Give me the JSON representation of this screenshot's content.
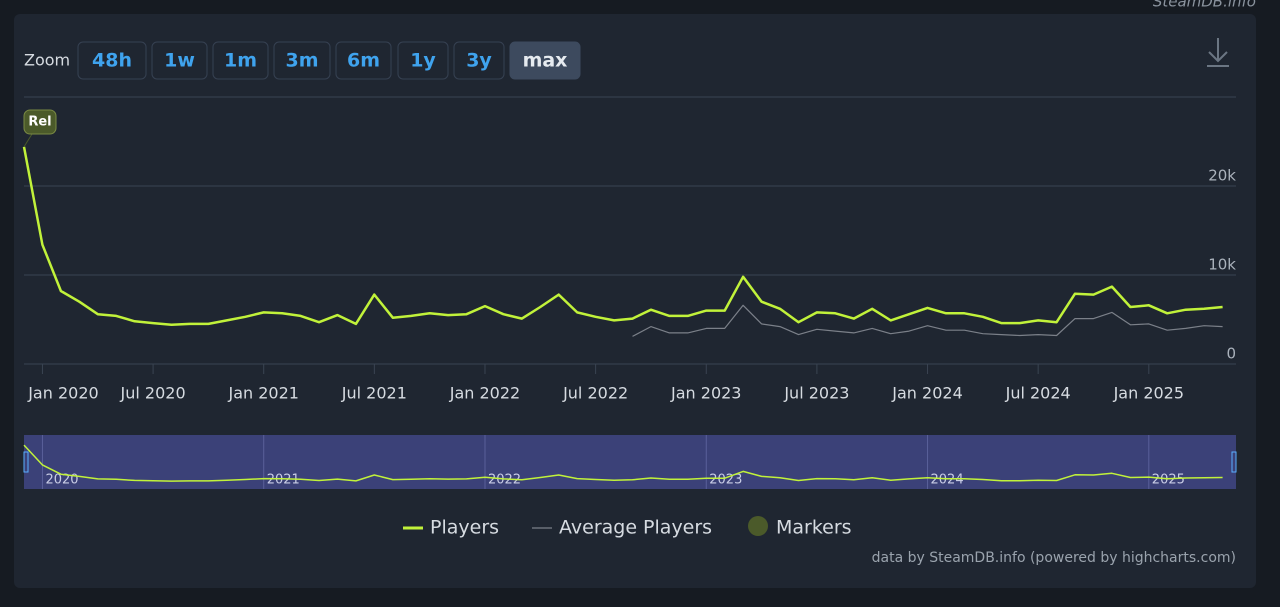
{
  "site": "SteamDB.info",
  "toolbar": {
    "label": "Zoom",
    "buttons": [
      "48h",
      "1w",
      "1m",
      "3m",
      "6m",
      "1y",
      "3y",
      "max"
    ],
    "active": "max"
  },
  "credits": "data by SteamDB.info (powered by highcharts.com)",
  "chart_data": {
    "type": "line",
    "x": [
      "2019-12",
      "2020-01",
      "2020-02",
      "2020-03",
      "2020-04",
      "2020-05",
      "2020-06",
      "2020-07",
      "2020-08",
      "2020-09",
      "2020-10",
      "2020-11",
      "2020-12",
      "2021-01",
      "2021-02",
      "2021-03",
      "2021-04",
      "2021-05",
      "2021-06",
      "2021-07",
      "2021-08",
      "2021-09",
      "2021-10",
      "2021-11",
      "2021-12",
      "2022-01",
      "2022-02",
      "2022-03",
      "2022-04",
      "2022-05",
      "2022-06",
      "2022-07",
      "2022-08",
      "2022-09",
      "2022-10",
      "2022-11",
      "2022-12",
      "2023-01",
      "2023-02",
      "2023-03",
      "2023-04",
      "2023-05",
      "2023-06",
      "2023-07",
      "2023-08",
      "2023-09",
      "2023-10",
      "2023-11",
      "2023-12",
      "2024-01",
      "2024-02",
      "2024-03",
      "2024-04",
      "2024-05",
      "2024-06",
      "2024-07",
      "2024-08",
      "2024-09",
      "2024-10",
      "2024-11",
      "2024-12",
      "2025-01",
      "2025-02",
      "2025-03",
      "2025-04",
      "2025-05"
    ],
    "series": [
      {
        "name": "Players",
        "color": "#c1f23a",
        "values": [
          24400,
          13400,
          8200,
          7000,
          5600,
          5400,
          4800,
          4600,
          4400,
          4500,
          4500,
          4900,
          5300,
          5800,
          5700,
          5400,
          4700,
          5500,
          4500,
          7800,
          5200,
          5400,
          5700,
          5500,
          5600,
          6500,
          5600,
          5100,
          6400,
          7800,
          5800,
          5300,
          4900,
          5100,
          6100,
          5400,
          5400,
          6000,
          6000,
          9800,
          7000,
          6200,
          4700,
          5800,
          5700,
          5100,
          6200,
          4900,
          5600,
          6300,
          5700,
          5700,
          5300,
          4600,
          4600,
          4900,
          4700,
          7900,
          7800,
          8700,
          6400,
          6600,
          5700,
          6100,
          6200,
          6400
        ]
      },
      {
        "name": "Average Players",
        "color": "#7b8089",
        "values": [
          null,
          null,
          null,
          null,
          null,
          null,
          null,
          null,
          null,
          null,
          null,
          null,
          null,
          null,
          null,
          null,
          null,
          null,
          null,
          null,
          null,
          null,
          null,
          null,
          null,
          null,
          null,
          null,
          null,
          null,
          null,
          null,
          null,
          3100,
          4200,
          3500,
          3500,
          4000,
          4000,
          6600,
          4500,
          4200,
          3300,
          3900,
          3700,
          3500,
          4000,
          3400,
          3700,
          4300,
          3800,
          3800,
          3400,
          3300,
          3200,
          3300,
          3200,
          5100,
          5100,
          5800,
          4400,
          4500,
          3800,
          4000,
          4300,
          4200
        ]
      }
    ],
    "markers": {
      "name": "Markers",
      "color": "#4b5a2a",
      "items": [
        {
          "x": "2019-12",
          "label": "Rel"
        }
      ]
    },
    "xlim": [
      "2019-12",
      "2025-06"
    ],
    "xticks": [
      {
        "value": "2020-01",
        "label": "Jan 2020"
      },
      {
        "value": "2020-07",
        "label": "Jul 2020"
      },
      {
        "value": "2021-01",
        "label": "Jan 2021"
      },
      {
        "value": "2021-07",
        "label": "Jul 2021"
      },
      {
        "value": "2022-01",
        "label": "Jan 2022"
      },
      {
        "value": "2022-07",
        "label": "Jul 2022"
      },
      {
        "value": "2023-01",
        "label": "Jan 2023"
      },
      {
        "value": "2023-07",
        "label": "Jul 2023"
      },
      {
        "value": "2024-01",
        "label": "Jan 2024"
      },
      {
        "value": "2024-07",
        "label": "Jul 2024"
      },
      {
        "value": "2025-01",
        "label": "Jan 2025"
      }
    ],
    "ylim": [
      0,
      30000
    ],
    "yticks": [
      0,
      {
        "value": 10000,
        "label": "10k"
      },
      {
        "value": 20000,
        "label": "20k"
      }
    ],
    "grid": true,
    "navigator": {
      "ticks": [
        {
          "value": "2020-01",
          "label": "2020"
        },
        {
          "value": "2021-01",
          "label": "2021"
        },
        {
          "value": "2022-01",
          "label": "2022"
        },
        {
          "value": "2023-01",
          "label": "2023"
        },
        {
          "value": "2024-01",
          "label": "2024"
        },
        {
          "value": "2025-01",
          "label": "2025"
        }
      ]
    },
    "legend": "bottom"
  }
}
